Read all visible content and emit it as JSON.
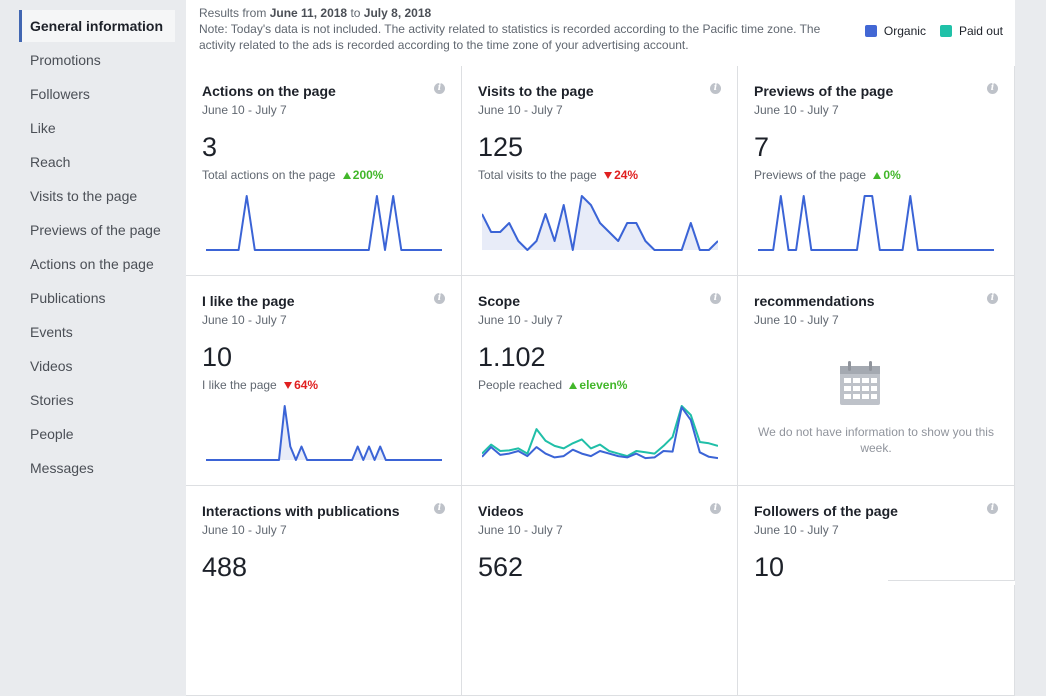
{
  "sidebar": {
    "items": [
      {
        "label": "General information",
        "active": true
      },
      {
        "label": "Promotions"
      },
      {
        "label": "Followers"
      },
      {
        "label": "Like"
      },
      {
        "label": "Reach"
      },
      {
        "label": "Visits to the page"
      },
      {
        "label": "Previews of the page"
      },
      {
        "label": "Actions on the page"
      },
      {
        "label": "Publications"
      },
      {
        "label": "Events"
      },
      {
        "label": "Videos"
      },
      {
        "label": "Stories"
      },
      {
        "label": "People"
      },
      {
        "label": "Messages"
      }
    ]
  },
  "header": {
    "results_prefix": "Results from",
    "date_from": "June 11, 2018",
    "results_to": "to",
    "date_to": "July 8, 2018",
    "note": "Note: Today's data is not included. The activity related to statistics is recorded according to the Pacific time zone. The activity related to the ads is recorded according to the time zone of your advertising account.",
    "legend": [
      {
        "label": "Organic",
        "color": "#4267d4"
      },
      {
        "label": "Paid out",
        "color": "#20c1a8"
      }
    ]
  },
  "colors": {
    "organic": "#3b64d6",
    "paid": "#20bfa8",
    "spark_fill": "#e8ecf8"
  },
  "cards": [
    {
      "title": "Actions on the page",
      "date": "June 10 - July 7",
      "value": "3",
      "caption": "Total actions on the page",
      "delta": "200%",
      "direction": "up",
      "organic": [
        0,
        0,
        0,
        0,
        0,
        1,
        0,
        0,
        0,
        0,
        0,
        0,
        0,
        0,
        0,
        0,
        0,
        0,
        0,
        0,
        0,
        1,
        0,
        1,
        0,
        0,
        0,
        0,
        0,
        0
      ]
    },
    {
      "title": "Visits to the page",
      "date": "June 10 - July 7",
      "value": "125",
      "caption": "Total visits to the page",
      "delta": "24%",
      "direction": "down",
      "organic": [
        4,
        2,
        2,
        3,
        1,
        0,
        1,
        4,
        1,
        5,
        0,
        6,
        5,
        3,
        2,
        1,
        3,
        3,
        1,
        0,
        0,
        0,
        0,
        3,
        0,
        0,
        1
      ]
    },
    {
      "title": "Previews of the page",
      "date": "June 10 - July 7",
      "value": "7",
      "caption": "Previews of the page",
      "delta": "0%",
      "direction": "up",
      "organic": [
        0,
        0,
        0,
        1,
        0,
        0,
        1,
        0,
        0,
        0,
        0,
        0,
        0,
        0,
        1,
        1,
        0,
        0,
        0,
        0,
        1,
        0,
        0,
        0,
        0,
        0,
        0,
        0,
        0,
        0,
        0,
        0
      ]
    },
    {
      "title": "I like the page",
      "date": "June 10 - July 7",
      "value": "10",
      "caption": "I like the page",
      "delta": "64%",
      "direction": "down",
      "organic": [
        0,
        0,
        0,
        0,
        0,
        0,
        0,
        0,
        0,
        0,
        0,
        0,
        0,
        0,
        4,
        1,
        0,
        1,
        0,
        0,
        0,
        0,
        0,
        0,
        0,
        0,
        0,
        1,
        0,
        1,
        0,
        1,
        0,
        0,
        0,
        0,
        0,
        0,
        0,
        0,
        0,
        0,
        0
      ]
    },
    {
      "title": "Scope",
      "date": "June 10 - July 7",
      "value": "1.102",
      "caption": "People reached",
      "delta": "eleven%",
      "direction": "up",
      "organic": [
        5,
        20,
        8,
        10,
        14,
        6,
        20,
        10,
        4,
        6,
        16,
        10,
        6,
        14,
        10,
        6,
        4,
        10,
        3,
        4,
        14,
        13,
        82,
        62,
        12,
        5,
        3
      ],
      "paid": [
        10,
        24,
        14,
        15,
        18,
        10,
        48,
        30,
        22,
        18,
        26,
        32,
        18,
        24,
        14,
        10,
        6,
        14,
        12,
        10,
        22,
        36,
        84,
        70,
        28,
        26,
        22
      ]
    },
    {
      "title": "recommendations",
      "date": "June 10 - July 7",
      "empty_text": "We do not have information to show you this week."
    },
    {
      "title": "Interactions with publications",
      "date": "June 10 - July 7",
      "value": "488"
    },
    {
      "title": "Videos",
      "date": "June 10 - July 7",
      "value": "562"
    },
    {
      "title": "Followers of the page",
      "date": "June 10 - July 7",
      "value": "10"
    }
  ]
}
